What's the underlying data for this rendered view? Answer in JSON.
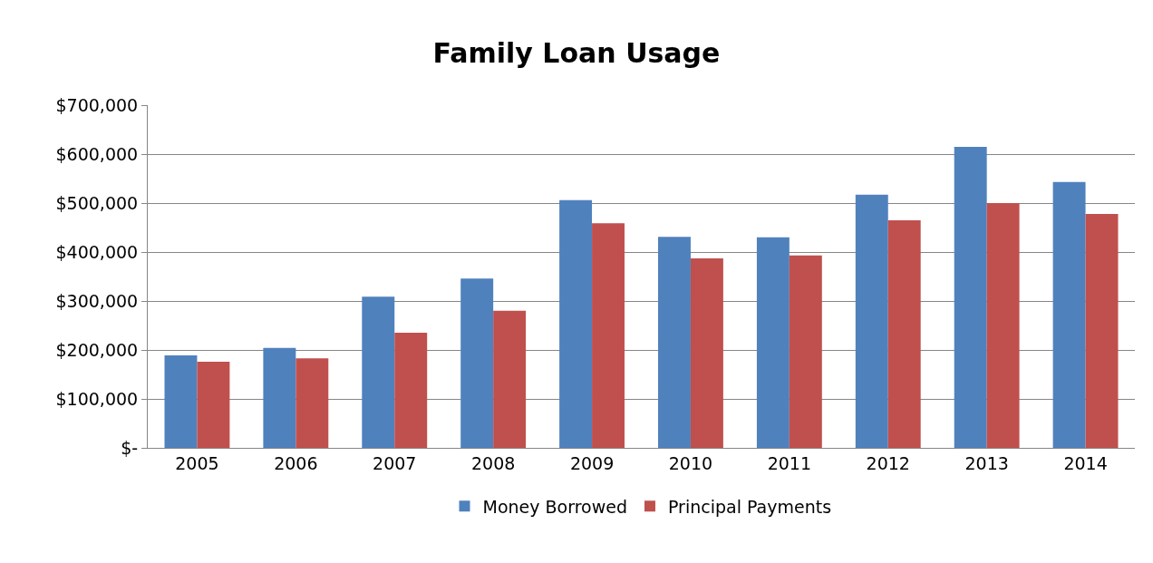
{
  "chart_data": {
    "type": "bar",
    "title": "Family Loan Usage",
    "categories": [
      "2005",
      "2006",
      "2007",
      "2008",
      "2009",
      "2010",
      "2011",
      "2012",
      "2013",
      "2014"
    ],
    "series": [
      {
        "name": "Money Borrowed",
        "color": "#4f81bd",
        "values": [
          189000,
          204000,
          309000,
          346000,
          506000,
          431000,
          430000,
          517000,
          615000,
          543000
        ]
      },
      {
        "name": "Principal Payments",
        "color": "#c0504d",
        "values": [
          176000,
          183000,
          235000,
          280000,
          459000,
          387000,
          393000,
          465000,
          500000,
          478000
        ]
      }
    ],
    "ylim": [
      0,
      700000
    ],
    "yticks": [
      {
        "value": 0,
        "label": "$-"
      },
      {
        "value": 100000,
        "label": "$100,000"
      },
      {
        "value": 200000,
        "label": "$200,000"
      },
      {
        "value": 300000,
        "label": "$300,000"
      },
      {
        "value": 400000,
        "label": "$400,000"
      },
      {
        "value": 500000,
        "label": "$500,000"
      },
      {
        "value": 600000,
        "label": "$600,000"
      },
      {
        "value": 700000,
        "label": "$700,000"
      }
    ],
    "grid": "y",
    "legend": "bottom"
  }
}
